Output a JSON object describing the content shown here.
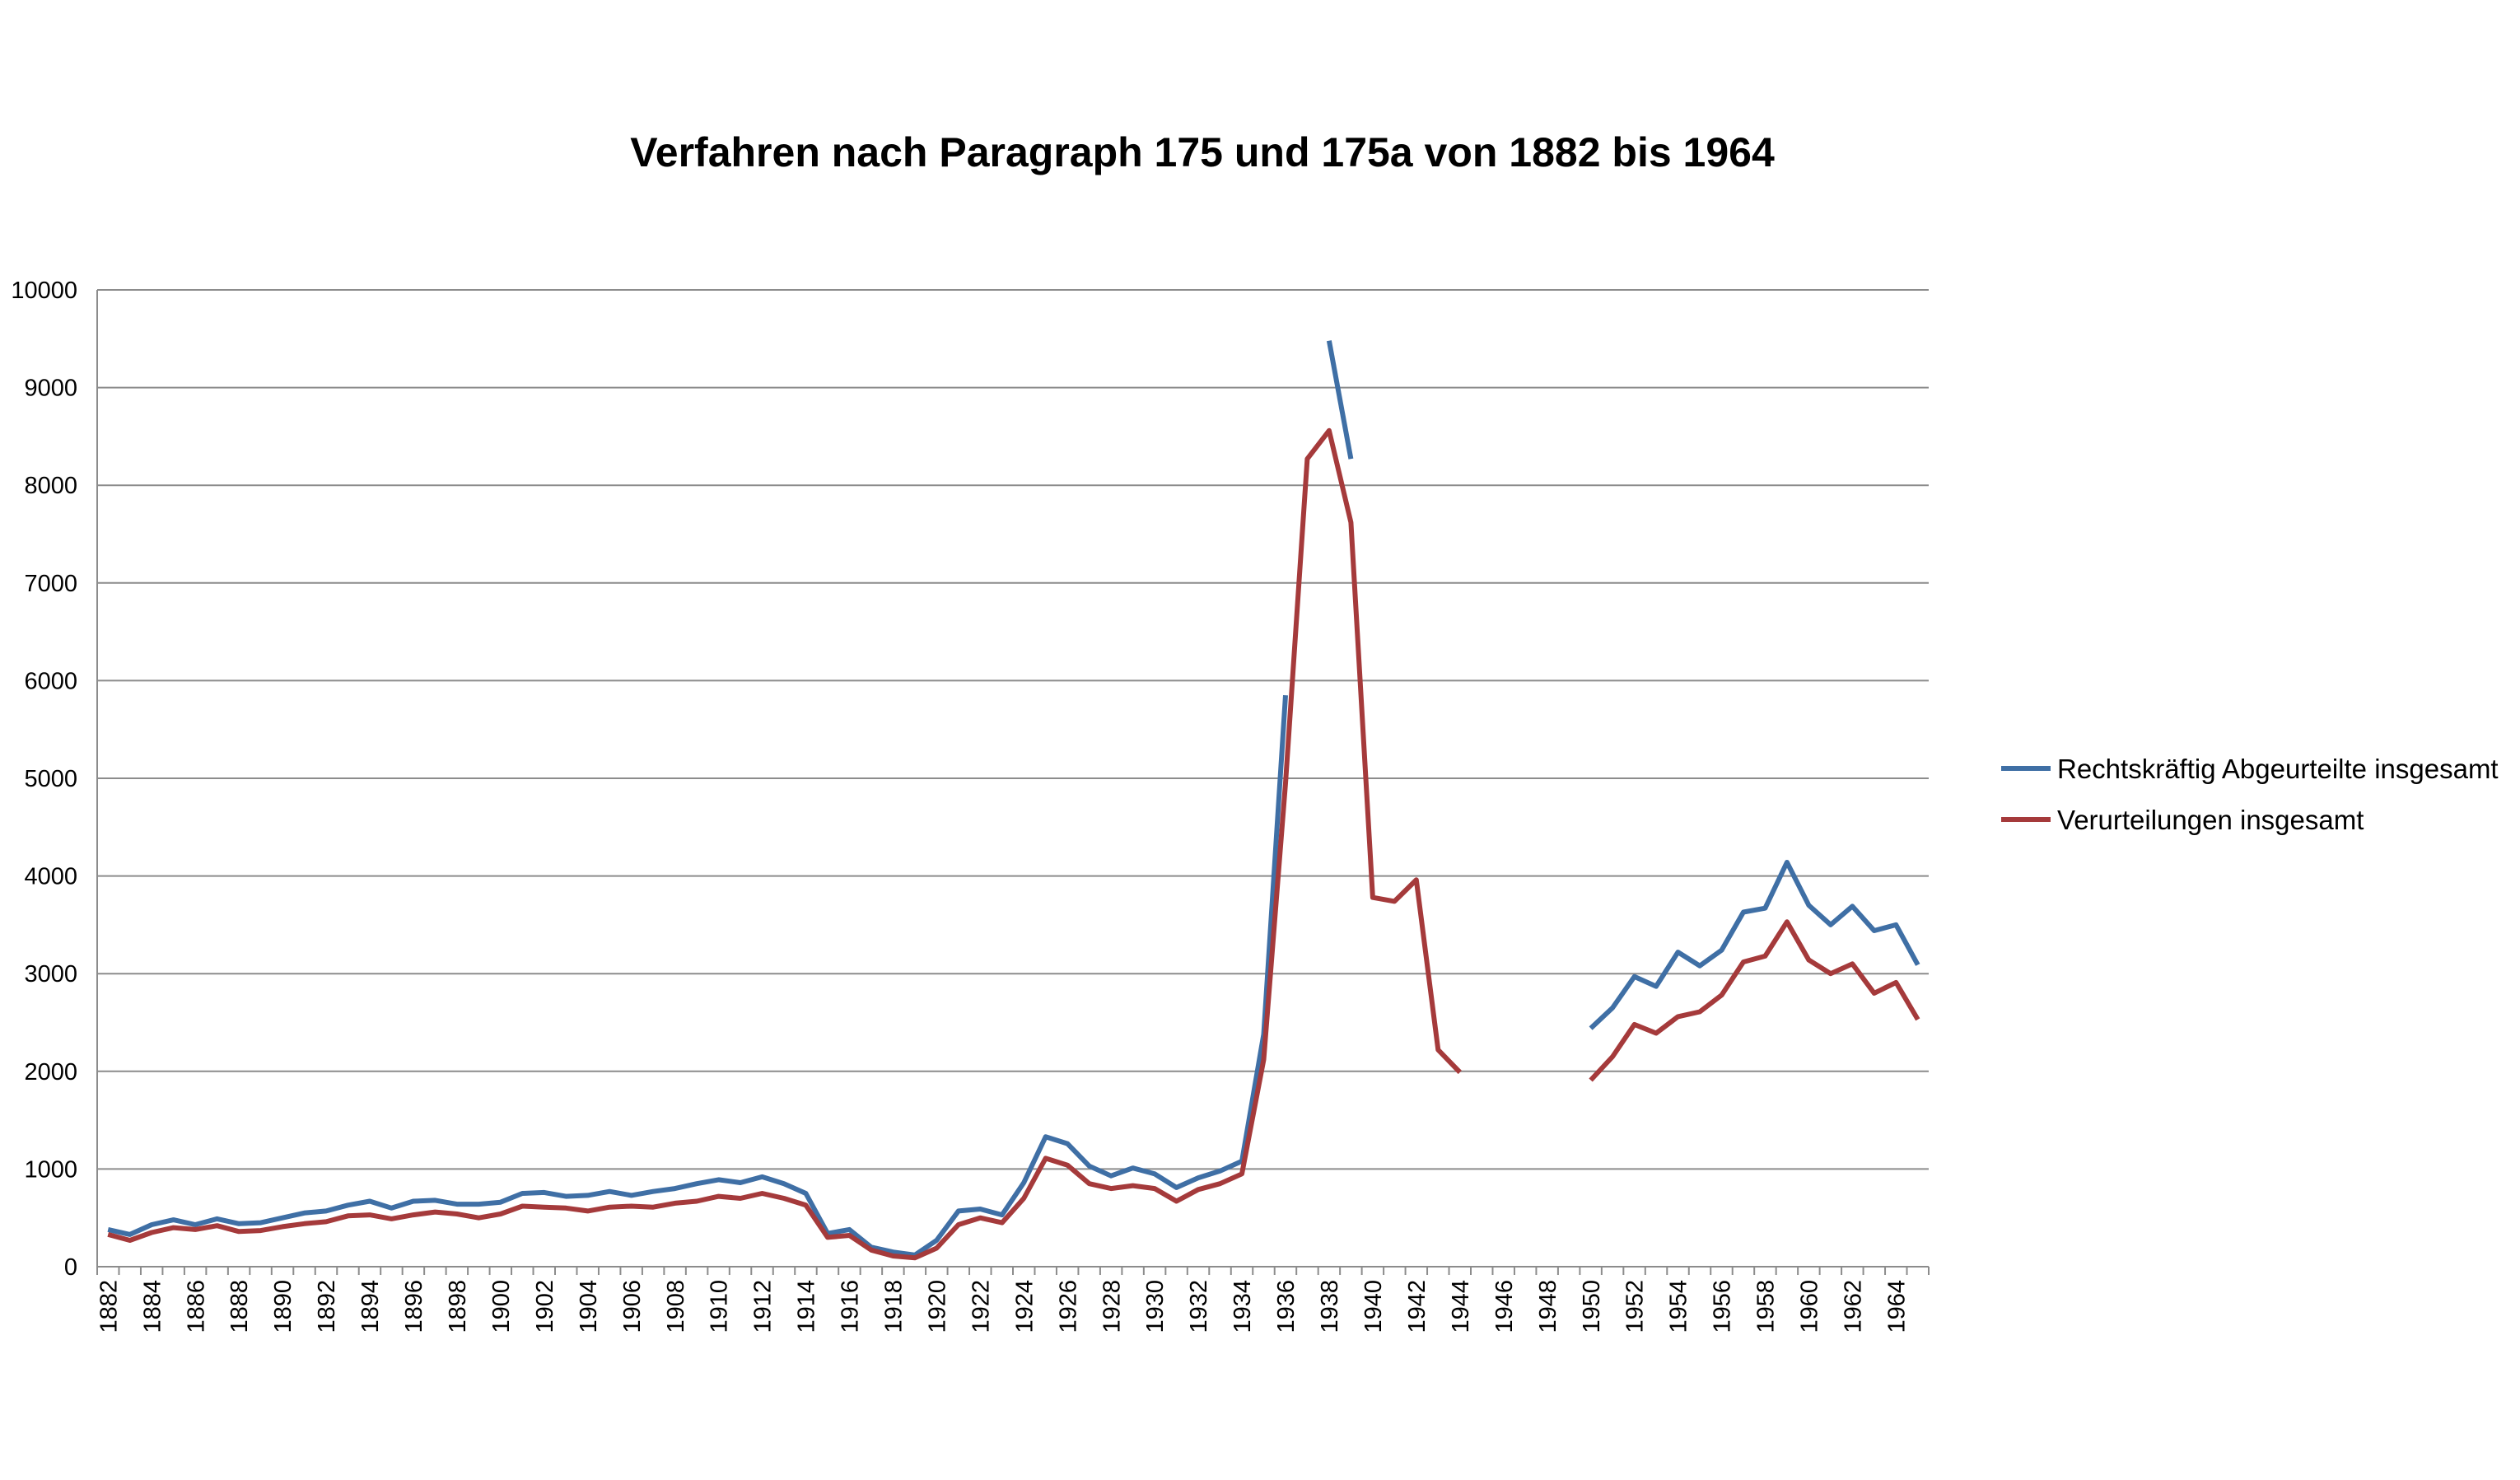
{
  "chart_data": {
    "type": "line",
    "title": "Verfahren nach Paragraph 175 und 175a von 1882 bis 1964",
    "xlabel": "",
    "ylabel": "",
    "ylim": [
      0,
      10000
    ],
    "y_ticks": [
      "0",
      "1000",
      "2000",
      "3000",
      "4000",
      "5000",
      "6000",
      "7000",
      "8000",
      "9000",
      "10000"
    ],
    "x_ticks": [
      "1882",
      "1884",
      "1886",
      "1888",
      "1890",
      "1892",
      "1894",
      "1896",
      "1898",
      "1900",
      "1902",
      "1904",
      "1906",
      "1908",
      "1910",
      "1912",
      "1914",
      "1916",
      "1918",
      "1920",
      "1922",
      "1924",
      "1926",
      "1928",
      "1930",
      "1932",
      "1934",
      "1936",
      "1938",
      "1940",
      "1942",
      "1944",
      "1946",
      "1948",
      "1950",
      "1952",
      "1954",
      "1956",
      "1958",
      "1960",
      "1962",
      "1964"
    ],
    "x_range": [
      1882,
      1965
    ],
    "grid": true,
    "legend_position": "right",
    "series": [
      {
        "name": "Rechtskräftig Abgeurteilte insgesamt",
        "color": "#3f6fa5",
        "x": [
          1882,
          1883,
          1884,
          1885,
          1886,
          1887,
          1888,
          1889,
          1890,
          1891,
          1892,
          1893,
          1894,
          1895,
          1896,
          1897,
          1898,
          1899,
          1900,
          1901,
          1902,
          1903,
          1904,
          1905,
          1906,
          1907,
          1908,
          1909,
          1910,
          1911,
          1912,
          1913,
          1914,
          1915,
          1916,
          1917,
          1918,
          1919,
          1920,
          1921,
          1922,
          1923,
          1924,
          1925,
          1926,
          1927,
          1928,
          1929,
          1930,
          1931,
          1932,
          1933,
          1934,
          1935,
          1936,
          1937,
          1938,
          1939,
          1940,
          1941,
          1942,
          1943,
          1944,
          1945,
          1946,
          1947,
          1948,
          1949,
          1950,
          1951,
          1952,
          1953,
          1954,
          1955,
          1956,
          1957,
          1958,
          1959,
          1960,
          1961,
          1962,
          1963,
          1964,
          1965
        ],
        "y": [
          380,
          330,
          430,
          480,
          430,
          490,
          440,
          450,
          500,
          550,
          570,
          630,
          670,
          600,
          670,
          680,
          640,
          640,
          660,
          750,
          760,
          720,
          730,
          770,
          730,
          770,
          800,
          850,
          890,
          860,
          920,
          850,
          750,
          340,
          380,
          200,
          150,
          120,
          270,
          570,
          590,
          530,
          860,
          1330,
          1260,
          1030,
          930,
          1010,
          950,
          810,
          910,
          980,
          1080,
          2380,
          5850,
          null,
          9480,
          8270,
          null,
          null,
          null,
          null,
          null,
          null,
          null,
          null,
          null,
          null,
          2440,
          2650,
          2970,
          2870,
          3220,
          3080,
          3240,
          3630,
          3670,
          4140,
          3700,
          3500,
          3690,
          3440,
          3500,
          3090
        ]
      },
      {
        "name": "Verurteilungen insgesamt",
        "color": "#a53a3b",
        "x": [
          1882,
          1883,
          1884,
          1885,
          1886,
          1887,
          1888,
          1889,
          1890,
          1891,
          1892,
          1893,
          1894,
          1895,
          1896,
          1897,
          1898,
          1899,
          1900,
          1901,
          1902,
          1903,
          1904,
          1905,
          1906,
          1907,
          1908,
          1909,
          1910,
          1911,
          1912,
          1913,
          1914,
          1915,
          1916,
          1917,
          1918,
          1919,
          1920,
          1921,
          1922,
          1923,
          1924,
          1925,
          1926,
          1927,
          1928,
          1929,
          1930,
          1931,
          1932,
          1933,
          1934,
          1935,
          1936,
          1937,
          1938,
          1939,
          1940,
          1941,
          1942,
          1943,
          1944,
          1945,
          1946,
          1947,
          1948,
          1949,
          1950,
          1951,
          1952,
          1953,
          1954,
          1955,
          1956,
          1957,
          1958,
          1959,
          1960,
          1961,
          1962,
          1963,
          1964,
          1965
        ],
        "y": [
          330,
          270,
          350,
          400,
          380,
          420,
          360,
          370,
          410,
          440,
          460,
          520,
          530,
          490,
          530,
          560,
          540,
          500,
          540,
          620,
          610,
          600,
          570,
          610,
          620,
          610,
          650,
          670,
          720,
          700,
          750,
          700,
          630,
          300,
          320,
          170,
          110,
          90,
          190,
          430,
          500,
          450,
          700,
          1110,
          1040,
          850,
          800,
          830,
          800,
          670,
          790,
          850,
          950,
          2120,
          4950,
          8270,
          8560,
          7620,
          3780,
          3740,
          3960,
          2220,
          1990,
          null,
          null,
          null,
          null,
          null,
          1910,
          2150,
          2480,
          2390,
          2560,
          2610,
          2780,
          3120,
          3180,
          3530,
          3140,
          3000,
          3100,
          2800,
          2910,
          2530
        ]
      }
    ]
  }
}
